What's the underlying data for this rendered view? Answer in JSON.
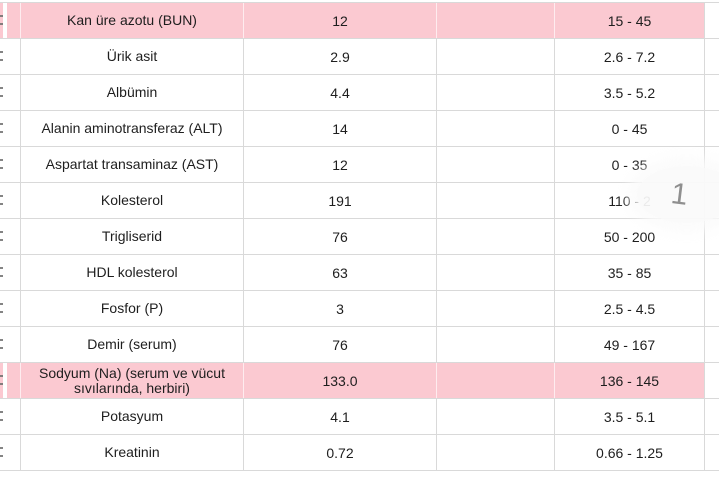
{
  "page": {
    "background": "#ffffff",
    "description_of_visible_content": "lab test results table"
  },
  "table": {
    "rows": [
      {
        "name": "Kan üre azotu (BUN)",
        "value": "12",
        "range": "15 - 45",
        "highlight": true
      },
      {
        "name": "Ürik asit",
        "value": "2.9",
        "range": "2.6 - 7.2",
        "highlight": false
      },
      {
        "name": "Albümin",
        "value": "4.4",
        "range": "3.5 - 5.2",
        "highlight": false
      },
      {
        "name": "Alanin aminotransferaz (ALT)",
        "value": "14",
        "range": "0 - 45",
        "highlight": false
      },
      {
        "name": "Aspartat transaminaz (AST)",
        "value": "12",
        "range": "0 - 35",
        "highlight": false
      },
      {
        "name": "Kolesterol",
        "value": "191",
        "range": "110 - 2",
        "highlight": false
      },
      {
        "name": "Trigliserid",
        "value": "76",
        "range": "50 - 200",
        "highlight": false
      },
      {
        "name": "HDL kolesterol",
        "value": "63",
        "range": "35 - 85",
        "highlight": false
      },
      {
        "name": "Fosfor (P)",
        "value": "3",
        "range": "2.5 - 4.5",
        "highlight": false
      },
      {
        "name": "Demir (serum)",
        "value": "76",
        "range": "49 - 167",
        "highlight": false
      },
      {
        "name": "Sodyum (Na) (serum ve vücut sıvılarında, herbiri)",
        "value": "133.0",
        "range": "136 - 145",
        "highlight": true
      },
      {
        "name": "Potasyum",
        "value": "4.1",
        "range": "3.5 - 5.1",
        "highlight": false
      },
      {
        "name": "Kreatinin",
        "value": "0.72",
        "range": "0.66 - 1.25",
        "highlight": false
      }
    ]
  },
  "overlay": {
    "page_indicator": "1"
  },
  "colors": {
    "highlight_pink": "#fbc9d1",
    "row_border": "#d9d9d9",
    "text": "#1e1e1e",
    "badge_text": "#8f8f8f",
    "badge_background": "#fafafa"
  }
}
